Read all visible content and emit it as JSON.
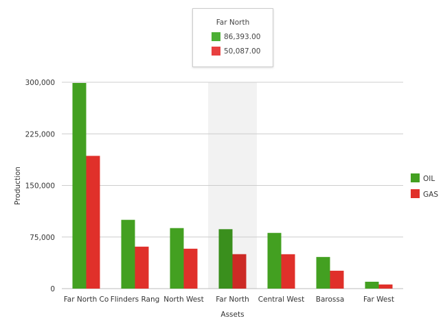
{
  "chart_data": {
    "type": "bar",
    "title": "",
    "xlabel": "Assets",
    "ylabel": "Production",
    "ylim": [
      0,
      300000
    ],
    "yticks": [
      "0",
      "75,000",
      "150,000",
      "225,000",
      "300,000"
    ],
    "ytick_values": [
      0,
      75000,
      150000,
      225000,
      300000
    ],
    "grid": true,
    "legend": "right",
    "categories": [
      "Far North Co",
      "Flinders Rang",
      "North West",
      "Far North",
      "Central West",
      "Barossa",
      "Far West"
    ],
    "series": [
      {
        "name": "OIL",
        "color": "#43a021",
        "values": [
          299000,
          100000,
          88000,
          86393,
          81000,
          46000,
          10000
        ]
      },
      {
        "name": "GAS",
        "color": "#e0302a",
        "values": [
          193000,
          61000,
          58000,
          50087,
          50000,
          26000,
          6000
        ]
      }
    ],
    "highlighted_category": "Far North"
  },
  "tooltip": {
    "title": "Far North",
    "rows": [
      {
        "value": "86,393.00",
        "color": "#4caf35"
      },
      {
        "value": "50,087.00",
        "color": "#e84040"
      }
    ]
  }
}
